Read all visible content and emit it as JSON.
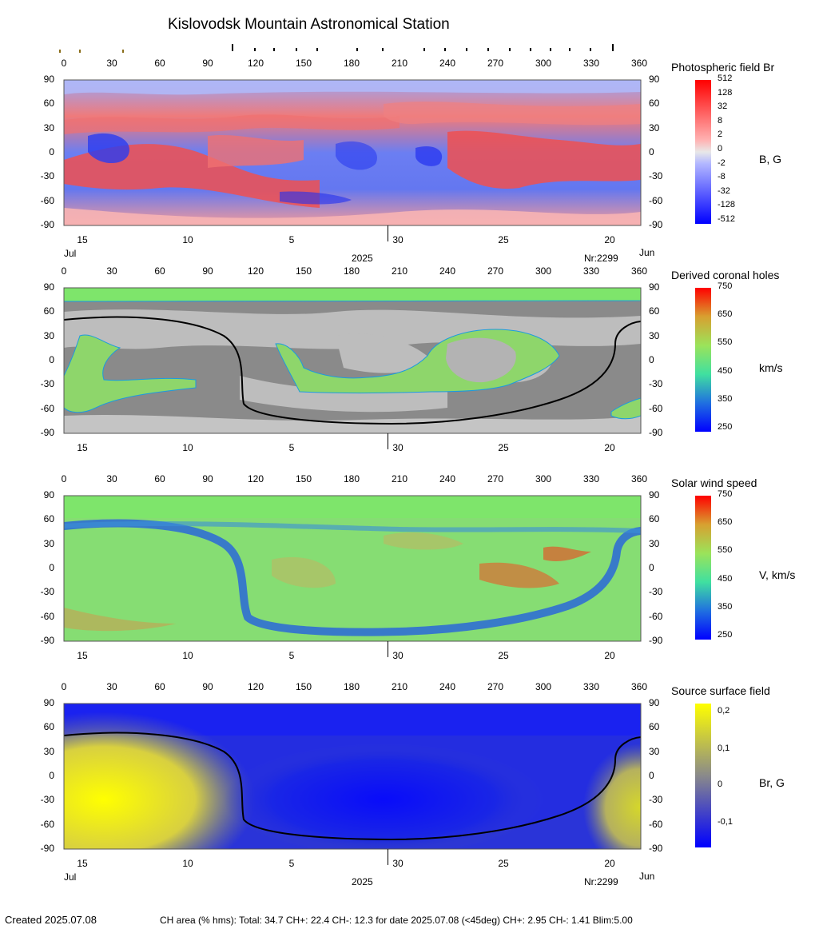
{
  "title": "Kislovodsk Mountain Astronomical Station",
  "footer": {
    "created": "Created  2025.07.08",
    "stats": "CH area (% hms): Total: 34.7 CH+: 22.4   CH-: 12.3 for date 2025.07.08 (<45deg) CH+: 2.95    CH-: 1.41 Blim:5.00"
  },
  "axes": {
    "lon_ticks": [
      "0",
      "30",
      "60",
      "90",
      "120",
      "150",
      "180",
      "210",
      "240",
      "270",
      "300",
      "330",
      "360"
    ],
    "lat_ticks": [
      "90",
      "60",
      "30",
      "0",
      "-30",
      "-60",
      "-90"
    ],
    "date_ticks": [
      "15",
      "10",
      "5",
      "30",
      "25",
      "20"
    ],
    "month_left": "Jul",
    "month_right": "Jun",
    "year": "2025",
    "rotation": "Nr:2299"
  },
  "colors": {
    "pos": "#ff2a2a",
    "neg": "#1f2cff",
    "ch_green": "#7ee56b",
    "gray_dark": "#7c7c7c",
    "gray_light": "#bdbdbd",
    "source_yellow": "#ffff00",
    "source_blue": "#0000ff"
  },
  "chart_data": [
    {
      "type": "heatmap",
      "panel": "photospheric",
      "colorbar_title": "Photospheric field Br",
      "unit": "B, G",
      "colorbar_ticks": [
        "512",
        "128",
        "32",
        "8",
        "2",
        "0",
        "-2",
        "-8",
        "-32",
        "-128",
        "-512"
      ],
      "xlim": [
        0,
        360
      ],
      "ylim": [
        -90,
        90
      ]
    },
    {
      "type": "heatmap",
      "panel": "coronal_holes",
      "colorbar_title": "Derived coronal holes",
      "unit": "km/s",
      "colorbar_ticks": [
        "750",
        "650",
        "550",
        "450",
        "350",
        "250"
      ],
      "xlim": [
        0,
        360
      ],
      "ylim": [
        -90,
        90
      ]
    },
    {
      "type": "heatmap",
      "panel": "solar_wind",
      "colorbar_title": "Solar wind speed",
      "unit": "V, km/s",
      "colorbar_ticks": [
        "750",
        "650",
        "550",
        "450",
        "350",
        "250"
      ],
      "xlim": [
        0,
        360
      ],
      "ylim": [
        -90,
        90
      ]
    },
    {
      "type": "heatmap",
      "panel": "source_surface",
      "colorbar_title": "Source surface field",
      "unit": "Br, G",
      "colorbar_ticks": [
        "0,2",
        "0,1",
        "0",
        "-0,1"
      ],
      "xlim": [
        0,
        360
      ],
      "ylim": [
        -90,
        90
      ]
    }
  ]
}
